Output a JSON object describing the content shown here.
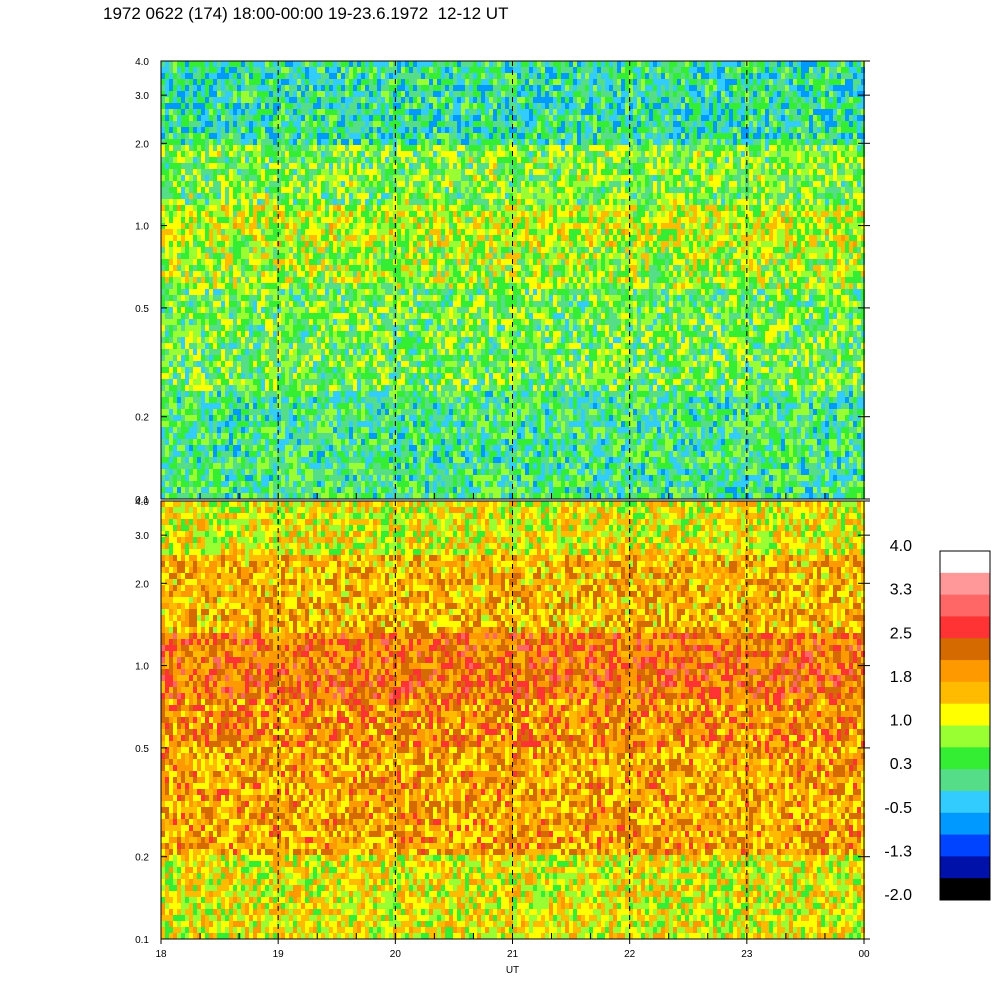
{
  "title": "1972 0622 (174) 18:00-00:00 19-23.6.1972  12-12 UT",
  "chart_data": {
    "type": "heatmap",
    "panels": [
      {
        "name": "upper",
        "y_scale": "log",
        "ylim": [
          0.1,
          4.0
        ],
        "y_ticks": [
          "0.1",
          "0.2",
          "0.5",
          "1.0",
          "2.0",
          "3.0",
          "4.0"
        ],
        "y_tick_values": [
          0.1,
          0.2,
          0.5,
          1.0,
          2.0,
          3.0,
          4.0
        ],
        "typical_level": 0.5,
        "bands": [
          {
            "y_from": 0.1,
            "y_to": 0.25,
            "level": 0.2
          },
          {
            "y_from": 0.25,
            "y_to": 0.6,
            "level": 0.5
          },
          {
            "y_from": 0.6,
            "y_to": 0.85,
            "level": 0.8
          },
          {
            "y_from": 0.85,
            "y_to": 1.2,
            "level": 1.0
          },
          {
            "y_from": 1.2,
            "y_to": 2.0,
            "level": 0.6
          },
          {
            "y_from": 2.0,
            "y_to": 4.0,
            "level": 0.0
          }
        ]
      },
      {
        "name": "lower",
        "y_scale": "log",
        "ylim": [
          0.1,
          4.0
        ],
        "y_ticks": [
          "0.1",
          "0.2",
          "0.5",
          "1.0",
          "2.0",
          "3.0",
          "4.0"
        ],
        "y_tick_values": [
          0.1,
          0.2,
          0.5,
          1.0,
          2.0,
          3.0,
          4.0
        ],
        "typical_level": 1.6,
        "bands": [
          {
            "y_from": 0.1,
            "y_to": 0.2,
            "level": 1.2
          },
          {
            "y_from": 0.2,
            "y_to": 0.5,
            "level": 1.8
          },
          {
            "y_from": 0.5,
            "y_to": 0.75,
            "level": 2.0
          },
          {
            "y_from": 0.75,
            "y_to": 1.3,
            "level": 2.2
          },
          {
            "y_from": 1.3,
            "y_to": 2.5,
            "level": 1.7
          },
          {
            "y_from": 2.5,
            "y_to": 4.0,
            "level": 1.2
          }
        ]
      }
    ],
    "x_ticks": [
      "18",
      "19",
      "20",
      "21",
      "22",
      "23",
      "00"
    ],
    "x_tick_values": [
      18,
      19,
      20,
      21,
      22,
      23,
      24
    ],
    "xlim": [
      18,
      24
    ],
    "xlabel": "UT",
    "dashed_lines_at": [
      19,
      20,
      21,
      22,
      23
    ],
    "colorbar": {
      "labels": [
        "4.0",
        "3.3",
        "2.5",
        "1.8",
        "1.0",
        "0.3",
        "-0.5",
        "-1.3",
        "-2.0"
      ],
      "label_values": [
        4.0,
        3.3,
        2.5,
        1.8,
        1.0,
        0.3,
        -0.5,
        -1.3,
        -2.0
      ],
      "colors_top_to_bottom": [
        "#ffffff",
        "#ff9999",
        "#ff6666",
        "#ff3333",
        "#d46a00",
        "#ff9900",
        "#ffbb00",
        "#ffff00",
        "#99ff33",
        "#33ee33",
        "#55dd88",
        "#33ccff",
        "#0099ff",
        "#0044ff",
        "#0011aa",
        "#000000"
      ]
    }
  }
}
